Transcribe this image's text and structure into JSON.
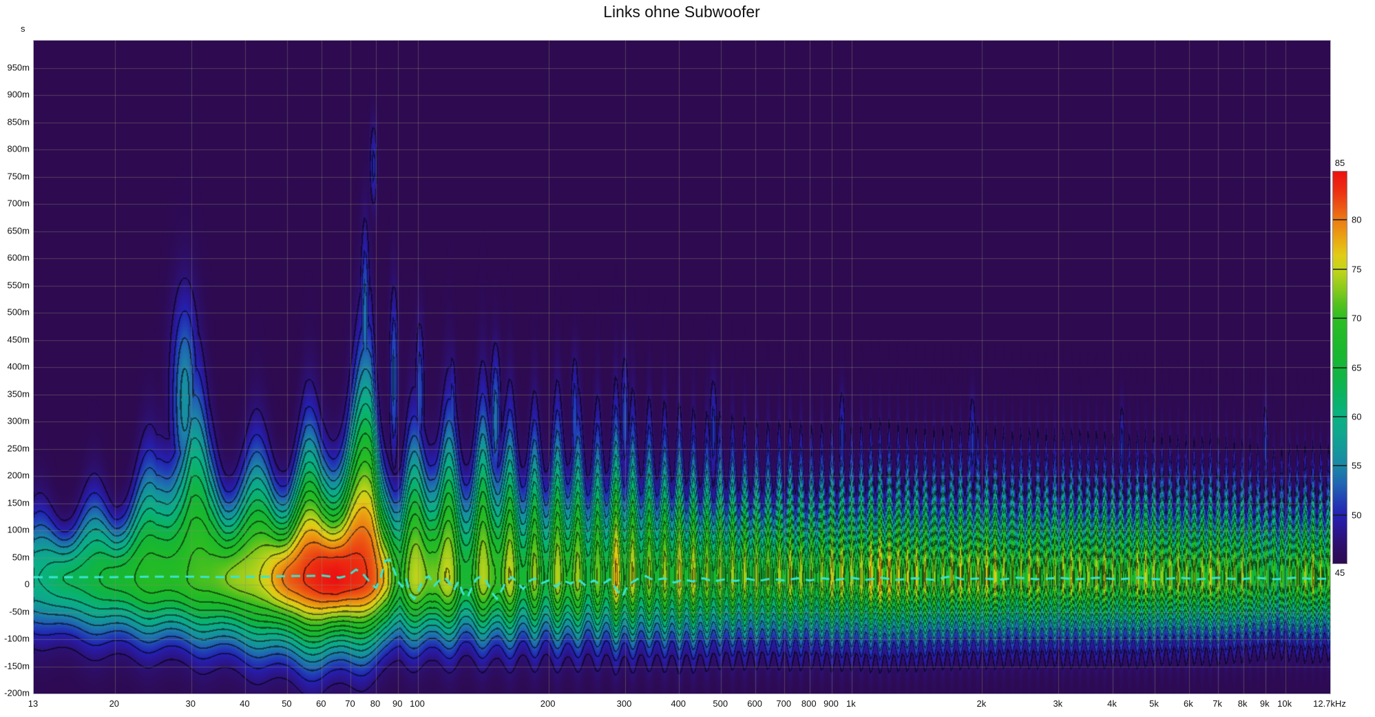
{
  "chart_data": {
    "type": "heatmap",
    "subtype": "wavelet-spectrogram",
    "title": "Links ohne Subwoofer",
    "x_axis": {
      "scale": "log",
      "unit": "Hz",
      "min": 13,
      "max": 12700,
      "tick_values": [
        13,
        20,
        30,
        40,
        50,
        60,
        70,
        80,
        90,
        100,
        200,
        300,
        400,
        500,
        600,
        700,
        800,
        900,
        1000,
        2000,
        3000,
        4000,
        5000,
        6000,
        7000,
        8000,
        9000,
        10000,
        12700
      ],
      "tick_labels": [
        "13",
        "20",
        "30",
        "40",
        "50",
        "60",
        "70",
        "80",
        "90",
        "100",
        "200",
        "300",
        "400",
        "500",
        "600",
        "700",
        "800",
        "900",
        "1k",
        "2k",
        "3k",
        "4k",
        "5k",
        "6k",
        "7k",
        "8k",
        "9k",
        "10k",
        "12.7kHz"
      ]
    },
    "y_axis": {
      "unit": "s",
      "min_ms": -200,
      "max_ms": 1000,
      "grid_step_ms": 50,
      "ticks": [
        {
          "ms": 950,
          "label": "950m"
        },
        {
          "ms": 900,
          "label": "900m"
        },
        {
          "ms": 850,
          "label": "850m"
        },
        {
          "ms": 800,
          "label": "800m"
        },
        {
          "ms": 750,
          "label": "750m"
        },
        {
          "ms": 700,
          "label": "700m"
        },
        {
          "ms": 650,
          "label": "650m"
        },
        {
          "ms": 600,
          "label": "600m"
        },
        {
          "ms": 550,
          "label": "550m"
        },
        {
          "ms": 500,
          "label": "500m"
        },
        {
          "ms": 450,
          "label": "450m"
        },
        {
          "ms": 400,
          "label": "400m"
        },
        {
          "ms": 350,
          "label": "350m"
        },
        {
          "ms": 300,
          "label": "300m"
        },
        {
          "ms": 250,
          "label": "250m"
        },
        {
          "ms": 200,
          "label": "200m"
        },
        {
          "ms": 150,
          "label": "150m"
        },
        {
          "ms": 100,
          "label": "100m"
        },
        {
          "ms": 50,
          "label": "50m"
        },
        {
          "ms": 0,
          "label": "0"
        },
        {
          "ms": -50,
          "label": "-50m"
        },
        {
          "ms": -100,
          "label": "-100m"
        },
        {
          "ms": -150,
          "label": "-150m"
        },
        {
          "ms": -200,
          "label": "-200m"
        }
      ]
    },
    "colorbar": {
      "min": 45,
      "max": 85,
      "unit": "dB",
      "ticks": [
        {
          "v": 85,
          "label": "85",
          "pos": "top"
        },
        {
          "v": 80,
          "label": "80",
          "pos": "right"
        },
        {
          "v": 75,
          "label": "75",
          "pos": "right"
        },
        {
          "v": 70,
          "label": "70",
          "pos": "right"
        },
        {
          "v": 65,
          "label": "65",
          "pos": "right"
        },
        {
          "v": 60,
          "label": "60",
          "pos": "right"
        },
        {
          "v": 55,
          "label": "55",
          "pos": "right"
        },
        {
          "v": 50,
          "label": "50",
          "pos": "right"
        },
        {
          "v": 45,
          "label": "45",
          "pos": "bottom"
        }
      ]
    },
    "colormap": [
      [
        45,
        "#2e0a50"
      ],
      [
        47,
        "#2d106e"
      ],
      [
        49,
        "#291ba0"
      ],
      [
        50,
        "#2323b2"
      ],
      [
        51.5,
        "#2141b4"
      ],
      [
        53,
        "#2063b2"
      ],
      [
        55,
        "#1b87a7"
      ],
      [
        57,
        "#129c97"
      ],
      [
        58.5,
        "#0ea98c"
      ],
      [
        60,
        "#0bb183"
      ],
      [
        62,
        "#0ab364"
      ],
      [
        64,
        "#10b545"
      ],
      [
        66,
        "#18b733"
      ],
      [
        68,
        "#20ba29"
      ],
      [
        70,
        "#2ebd23"
      ],
      [
        71.5,
        "#55c21e"
      ],
      [
        73,
        "#8aca1c"
      ],
      [
        75,
        "#c4d51b"
      ],
      [
        76.5,
        "#e2cb16"
      ],
      [
        78,
        "#eaa912"
      ],
      [
        80,
        "#ec7c13"
      ],
      [
        81.5,
        "#ec5413"
      ],
      [
        83,
        "#ec2f12"
      ],
      [
        85,
        "#ec1111"
      ]
    ],
    "grid_color": "rgba(140,140,112,0.42)",
    "contour_step_db": 2.5,
    "time_center_ms": 12,
    "envelope_f_peak_top_bottom": [
      [
        13,
        61,
        150,
        160
      ],
      [
        16,
        63,
        165,
        170
      ],
      [
        20,
        66,
        185,
        175
      ],
      [
        25,
        68,
        260,
        180
      ],
      [
        28,
        69,
        420,
        185
      ],
      [
        30,
        70,
        450,
        185
      ],
      [
        33,
        71,
        300,
        190
      ],
      [
        36,
        72.5,
        260,
        195
      ],
      [
        40,
        74.5,
        250,
        200
      ],
      [
        45,
        77,
        265,
        205
      ],
      [
        50,
        81,
        255,
        210
      ],
      [
        55,
        83.5,
        290,
        215
      ],
      [
        60,
        84.5,
        280,
        220
      ],
      [
        65,
        85,
        330,
        215
      ],
      [
        70,
        83.5,
        390,
        210
      ],
      [
        75,
        82,
        430,
        205
      ],
      [
        78,
        81,
        450,
        200
      ],
      [
        82,
        79,
        330,
        195
      ],
      [
        85,
        77.5,
        300,
        190
      ],
      [
        88,
        73,
        260,
        185
      ],
      [
        91,
        69,
        240,
        180
      ],
      [
        95,
        72,
        280,
        180
      ],
      [
        100,
        75,
        300,
        180
      ],
      [
        108,
        78,
        340,
        180
      ],
      [
        115,
        77,
        330,
        180
      ],
      [
        125,
        73,
        300,
        180
      ],
      [
        135,
        74,
        310,
        180
      ],
      [
        150,
        78,
        360,
        180
      ],
      [
        160,
        75,
        300,
        180
      ],
      [
        175,
        73.5,
        300,
        180
      ],
      [
        190,
        72,
        280,
        180
      ],
      [
        205,
        74,
        300,
        180
      ],
      [
        225,
        76.5,
        300,
        180
      ],
      [
        245,
        73,
        280,
        180
      ],
      [
        265,
        72.5,
        280,
        180
      ],
      [
        290,
        77.5,
        300,
        180
      ],
      [
        320,
        74,
        280,
        180
      ],
      [
        360,
        74.5,
        270,
        180
      ],
      [
        400,
        75,
        260,
        180
      ],
      [
        450,
        74,
        250,
        180
      ],
      [
        500,
        74.5,
        250,
        175
      ],
      [
        560,
        73,
        240,
        175
      ],
      [
        630,
        74,
        235,
        175
      ],
      [
        700,
        74.5,
        235,
        175
      ],
      [
        800,
        73.5,
        230,
        175
      ],
      [
        900,
        75.5,
        230,
        175
      ],
      [
        1000,
        75,
        230,
        175
      ],
      [
        1120,
        77.5,
        230,
        175
      ],
      [
        1250,
        78,
        230,
        175
      ],
      [
        1400,
        75,
        225,
        175
      ],
      [
        1600,
        74.5,
        225,
        175
      ],
      [
        1800,
        75.5,
        225,
        170
      ],
      [
        2000,
        76.5,
        225,
        170
      ],
      [
        2300,
        74,
        220,
        170
      ],
      [
        2600,
        75,
        220,
        170
      ],
      [
        3000,
        74,
        220,
        170
      ],
      [
        3400,
        75.5,
        220,
        170
      ],
      [
        4000,
        74,
        215,
        170
      ],
      [
        4500,
        74.5,
        215,
        170
      ],
      [
        5000,
        75.5,
        215,
        165
      ],
      [
        5600,
        74,
        210,
        165
      ],
      [
        6300,
        74.5,
        210,
        165
      ],
      [
        7000,
        75,
        210,
        165
      ],
      [
        8000,
        73.5,
        205,
        160
      ],
      [
        9000,
        72.5,
        200,
        160
      ],
      [
        9600,
        70,
        195,
        155
      ],
      [
        10500,
        74,
        200,
        160
      ],
      [
        11500,
        74.5,
        200,
        160
      ],
      [
        12700,
        73,
        200,
        160
      ]
    ],
    "striations": {
      "density_per_decade": [
        [
          1.9,
          8
        ],
        [
          2.2,
          16
        ],
        [
          2.5,
          26
        ],
        [
          2.8,
          38
        ],
        [
          3.1,
          48
        ],
        [
          3.5,
          52
        ],
        [
          4.11,
          56
        ]
      ],
      "depth_db": [
        [
          1.11,
          0
        ],
        [
          1.9,
          0
        ],
        [
          1.98,
          4
        ],
        [
          2.1,
          7.5
        ],
        [
          2.5,
          9
        ],
        [
          3.0,
          9
        ],
        [
          4.11,
          9
        ]
      ],
      "amp_var_db": 2.5,
      "phase": 0.15
    },
    "spikes_f_center_sigma_db_width": [
      [
        29,
        340,
        130,
        11,
        0.022
      ],
      [
        75.5,
        480,
        120,
        9,
        0.007
      ],
      [
        79,
        770,
        55,
        5.5,
        0.006
      ],
      [
        88,
        380,
        110,
        8,
        0.007
      ],
      [
        101,
        350,
        90,
        7,
        0.007
      ],
      [
        120,
        300,
        80,
        7,
        0.006
      ],
      [
        151,
        300,
        90,
        9,
        0.008
      ],
      [
        230,
        300,
        80,
        7,
        0.006
      ],
      [
        300,
        300,
        80,
        7,
        0.006
      ],
      [
        480,
        280,
        70,
        6,
        0.006
      ],
      [
        950,
        270,
        60,
        6,
        0.005
      ],
      [
        1900,
        260,
        60,
        6,
        0.005
      ],
      [
        4200,
        250,
        55,
        6,
        0.004
      ],
      [
        9000,
        250,
        55,
        6,
        0.004
      ]
    ],
    "overlay_line": {
      "name": "mains/excess-delay trace",
      "color": "#3ae5d0",
      "style": "dashed",
      "dash": [
        13,
        9
      ],
      "width": 3,
      "points_f_ms": [
        [
          13,
          14
        ],
        [
          20,
          14
        ],
        [
          25,
          15
        ],
        [
          30,
          15
        ],
        [
          35,
          14
        ],
        [
          40,
          15
        ],
        [
          45,
          15
        ],
        [
          50,
          16
        ],
        [
          55,
          16
        ],
        [
          60,
          17
        ],
        [
          63,
          15
        ],
        [
          66,
          13
        ],
        [
          69,
          17
        ],
        [
          72,
          28
        ],
        [
          75,
          18
        ],
        [
          78,
          2
        ],
        [
          80,
          -6
        ],
        [
          82,
          12
        ],
        [
          84,
          44
        ],
        [
          86,
          46
        ],
        [
          88,
          28
        ],
        [
          90,
          6
        ],
        [
          92,
          -4
        ],
        [
          94,
          10
        ],
        [
          96,
          -18
        ],
        [
          98,
          -26
        ],
        [
          100,
          -12
        ],
        [
          103,
          10
        ],
        [
          106,
          16
        ],
        [
          109,
          -2
        ],
        [
          112,
          8
        ],
        [
          115,
          14
        ],
        [
          118,
          4
        ],
        [
          121,
          -10
        ],
        [
          124,
          6
        ],
        [
          127,
          -16
        ],
        [
          130,
          -24
        ],
        [
          133,
          -6
        ],
        [
          136,
          10
        ],
        [
          140,
          16
        ],
        [
          144,
          6
        ],
        [
          148,
          -14
        ],
        [
          152,
          -26
        ],
        [
          156,
          -10
        ],
        [
          160,
          8
        ],
        [
          165,
          14
        ],
        [
          170,
          2
        ],
        [
          175,
          -8
        ],
        [
          180,
          6
        ],
        [
          186,
          12
        ],
        [
          192,
          2
        ],
        [
          200,
          8
        ],
        [
          208,
          -4
        ],
        [
          216,
          8
        ],
        [
          225,
          2
        ],
        [
          234,
          10
        ],
        [
          244,
          -2
        ],
        [
          254,
          8
        ],
        [
          265,
          0
        ],
        [
          277,
          10
        ],
        [
          290,
          -14
        ],
        [
          296,
          -22
        ],
        [
          305,
          0
        ],
        [
          320,
          10
        ],
        [
          335,
          16
        ],
        [
          350,
          8
        ],
        [
          370,
          12
        ],
        [
          390,
          4
        ],
        [
          410,
          10
        ],
        [
          430,
          6
        ],
        [
          455,
          12
        ],
        [
          480,
          6
        ],
        [
          510,
          10
        ],
        [
          540,
          7
        ],
        [
          575,
          11
        ],
        [
          610,
          7
        ],
        [
          650,
          11
        ],
        [
          700,
          8
        ],
        [
          750,
          12
        ],
        [
          800,
          8
        ],
        [
          860,
          12
        ],
        [
          920,
          9
        ],
        [
          1000,
          13
        ],
        [
          1080,
          9
        ],
        [
          1170,
          13
        ],
        [
          1270,
          9
        ],
        [
          1400,
          12
        ],
        [
          1550,
          9
        ],
        [
          1700,
          16
        ],
        [
          1800,
          10
        ],
        [
          2000,
          12
        ],
        [
          2200,
          9
        ],
        [
          2400,
          13
        ],
        [
          2700,
          10
        ],
        [
          3000,
          13
        ],
        [
          3300,
          10
        ],
        [
          3700,
          13
        ],
        [
          4100,
          10
        ],
        [
          4600,
          13
        ],
        [
          5100,
          10
        ],
        [
          5700,
          13
        ],
        [
          6300,
          10
        ],
        [
          7000,
          13
        ],
        [
          7800,
          10
        ],
        [
          8600,
          13
        ],
        [
          9500,
          10
        ],
        [
          10500,
          13
        ],
        [
          11500,
          11
        ],
        [
          12700,
          11
        ]
      ]
    }
  }
}
